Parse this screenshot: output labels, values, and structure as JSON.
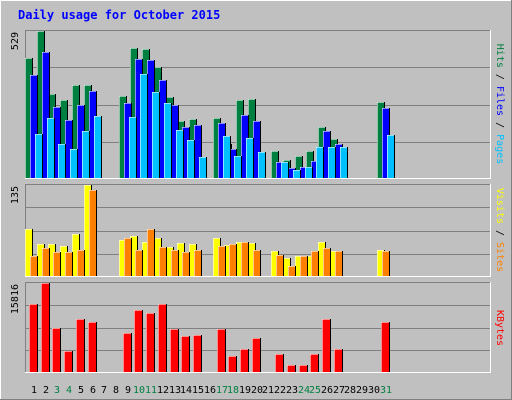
{
  "chart_data": {
    "type": "bar",
    "title": "Daily usage for October 2015",
    "categories": [
      "1",
      "2",
      "3",
      "4",
      "5",
      "6",
      "7",
      "8",
      "9",
      "10",
      "11",
      "12",
      "13",
      "14",
      "15",
      "16",
      "17",
      "18",
      "19",
      "20",
      "21",
      "22",
      "23",
      "24",
      "25",
      "26",
      "27",
      "28",
      "29",
      "30",
      "31"
    ],
    "weekend_days": [
      "3",
      "4",
      "10",
      "11",
      "17",
      "18",
      "24",
      "25",
      "31"
    ],
    "panels": [
      {
        "id": "hits",
        "max_label": "529",
        "ymax": 529,
        "grid": true,
        "legend": [
          {
            "label": "Pages",
            "color": "#00c0ff"
          },
          {
            "label": "Files",
            "color": "#0000ff"
          },
          {
            "label": "Hits",
            "color": "#008040"
          }
        ],
        "series": [
          {
            "name": "Hits",
            "color": "#008040",
            "values": [
              431,
              529,
              301,
              280,
              335,
              335,
              0,
              0,
              296,
              469,
              466,
              400,
              292,
              205,
              214,
              0,
              215,
              123,
              279,
              283,
              0,
              97,
              64,
              80,
              97,
              184,
              140,
              0,
              0,
              0,
              272
            ]
          },
          {
            "name": "Files",
            "color": "#0000ff",
            "values": [
              371,
              453,
              254,
              208,
              262,
              314,
              0,
              0,
              269,
              430,
              425,
              354,
              262,
              185,
              189,
              0,
              199,
              103,
              228,
              206,
              0,
              59,
              37,
              39,
              60,
              168,
              122,
              0,
              0,
              0,
              253
            ]
          },
          {
            "name": "Pages",
            "color": "#00c0ff",
            "values": [
              158,
              216,
              123,
              104,
              168,
              224,
              0,
              0,
              220,
              376,
              311,
              269,
              171,
              138,
              76,
              0,
              152,
              78,
              143,
              92,
              0,
              59,
              27,
              39,
              110,
              110,
              112,
              0,
              0,
              0,
              153
            ]
          }
        ]
      },
      {
        "id": "visits",
        "max_label": "135",
        "ymax": 135,
        "grid": true,
        "legend": [
          {
            "label": "Sites",
            "color": "#ff8000"
          },
          {
            "label": "Visits",
            "color": "#ffff00"
          }
        ],
        "series": [
          {
            "name": "Visits",
            "color": "#ffff00",
            "values": [
              69,
              48,
              47,
              45,
              62,
              135,
              0,
              0,
              53,
              60,
              50,
              57,
              43,
              49,
              47,
              0,
              56,
              46,
              50,
              49,
              0,
              37,
              26,
              30,
              29,
              51,
              37,
              0,
              0,
              0,
              38
            ]
          },
          {
            "name": "Sites",
            "color": "#ff8000",
            "values": [
              30,
              42,
              35,
              36,
              39,
              128,
              0,
              0,
              57,
              38,
              69,
              43,
              39,
              36,
              38,
              0,
              45,
              47,
              50,
              39,
              0,
              31,
              15,
              29,
              37,
              42,
              37,
              0,
              0,
              0,
              37
            ]
          }
        ]
      },
      {
        "id": "kbytes",
        "max_label": "15816",
        "ymax": 15816,
        "grid": true,
        "legend": [
          {
            "label": "KBytes",
            "color": "#ff0000"
          }
        ],
        "series": [
          {
            "name": "KBytes",
            "color": "#ff0000",
            "values": [
              12100,
              15816,
              7753,
              3662,
              9438,
              8834,
              0,
              0,
              7006,
              11096,
              10478,
              12003,
              7591,
              6395,
              6611,
              0,
              7664,
              2874,
              4100,
              6017,
              0,
              3215,
              1200,
              1300,
              3215,
              9376,
              4100,
              0,
              0,
              0,
              8835
            ]
          }
        ]
      }
    ]
  }
}
